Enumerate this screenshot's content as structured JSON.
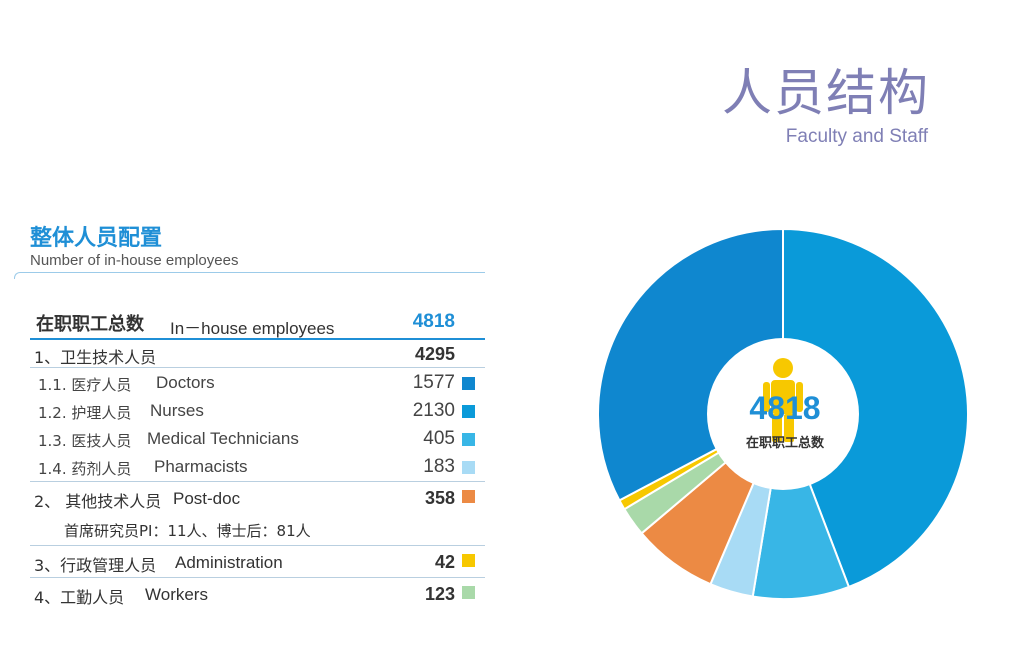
{
  "header": {
    "title": "人员结构",
    "subtitle": "Faculty and Staff"
  },
  "section": {
    "title": "整体人员配置",
    "subtitle": "Number of in-house employees"
  },
  "table": {
    "total": {
      "zh": "在职职工总数",
      "en": "In－house employees",
      "value": "4818"
    },
    "cat1": {
      "zh": "1、卫生技术人员",
      "value": "4295"
    },
    "subs": [
      {
        "zh": "1.1. 医疗人员",
        "en": "Doctors",
        "value": "1577",
        "color": "#0f87cf"
      },
      {
        "zh": "1.2. 护理人员",
        "en": "Nurses",
        "value": "2130",
        "color": "#0a9ad9"
      },
      {
        "zh": "1.3. 医技人员",
        "en": "Medical Technicians",
        "value": "405",
        "color": "#38b6e6"
      },
      {
        "zh": "1.4. 药剂人员",
        "en": "Pharmacists",
        "value": "183",
        "color": "#a8dbf5"
      }
    ],
    "cat2": {
      "zh": "2、 其他技术人员",
      "en": "Post-doc",
      "value": "358",
      "color": "#ec8a44"
    },
    "note": "首席研究员PI：11人、博士后：81人",
    "cat3": {
      "zh": "3、行政管理人员",
      "en": "Administration",
      "value": "42",
      "color": "#f7c800"
    },
    "cat4": {
      "zh": "4、工勤人员",
      "en": "Workers",
      "value": "123",
      "color": "#a9d9a9"
    }
  },
  "chart_data": {
    "type": "pie",
    "variant": "donut",
    "center_value": "4818",
    "center_label": "在职职工总数",
    "slices": [
      {
        "label": "护理人员",
        "value": 2130,
        "color": "#0a9ad9"
      },
      {
        "label": "医技人员",
        "value": 405,
        "color": "#38b6e6"
      },
      {
        "label": "药剂人员",
        "value": 183,
        "color": "#a8dbf5"
      },
      {
        "label": "其他技术人员",
        "value": 358,
        "color": "#ec8a44"
      },
      {
        "label": "工勤人员",
        "value": 123,
        "color": "#a9d9a9"
      },
      {
        "label": "行政管理人员",
        "value": 42,
        "color": "#f7c800"
      },
      {
        "label": "医疗人员",
        "value": 1577,
        "color": "#0f87cf"
      }
    ]
  }
}
